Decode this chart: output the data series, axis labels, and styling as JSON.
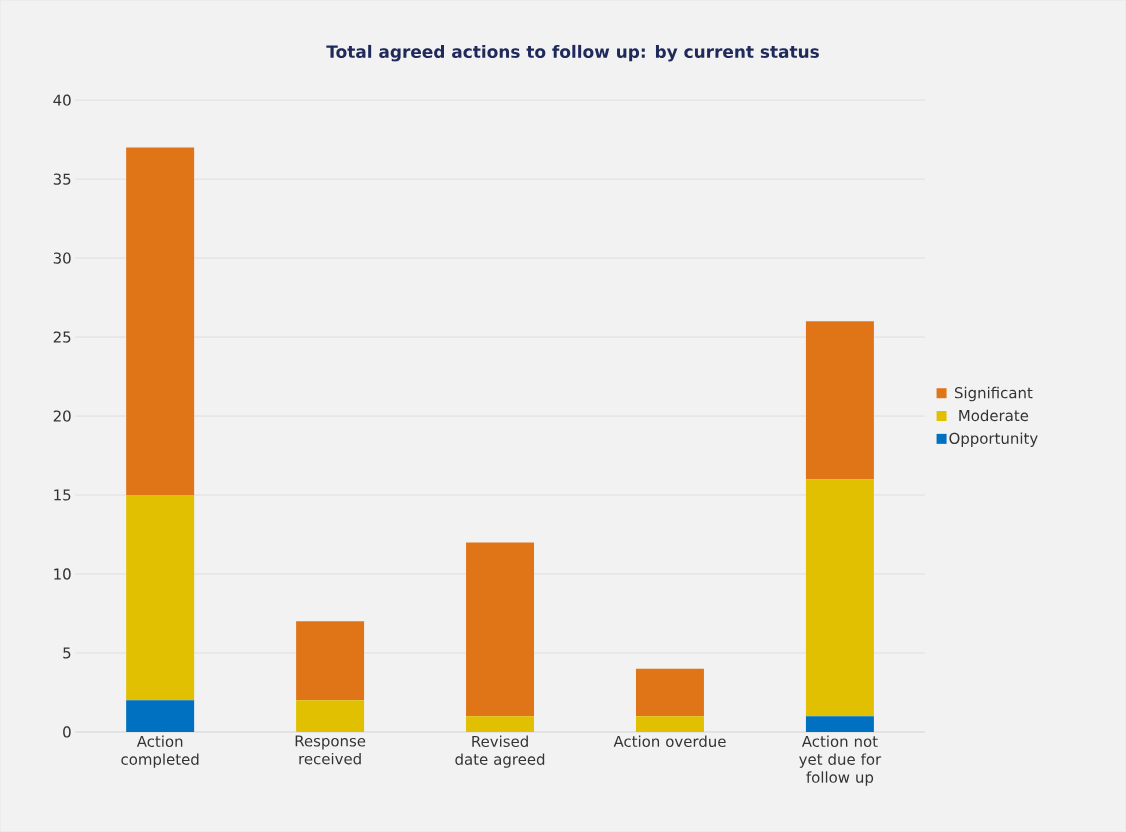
{
  "chart_data": {
    "type": "bar",
    "title": "Total agreed actions to follow up: by current status",
    "categories": [
      "Action completed",
      "Response received",
      "Revised date agreed",
      "Action overdue",
      "Action not yet due for follow up"
    ],
    "series": [
      {
        "name": "Opportunity",
        "color": "#0070c0",
        "values": [
          2,
          0,
          0,
          0,
          1
        ]
      },
      {
        "name": "Moderate",
        "color": "#e0c000",
        "values": [
          13,
          2,
          1,
          1,
          15
        ]
      },
      {
        "name": "Significant",
        "color": "#e07518",
        "values": [
          22,
          5,
          11,
          3,
          10
        ]
      }
    ],
    "stacked": true,
    "ylim": [
      0,
      40
    ],
    "yticks": [
      0,
      5,
      10,
      15,
      20,
      25,
      30,
      35,
      40
    ],
    "grid": "y",
    "legend": "right"
  }
}
